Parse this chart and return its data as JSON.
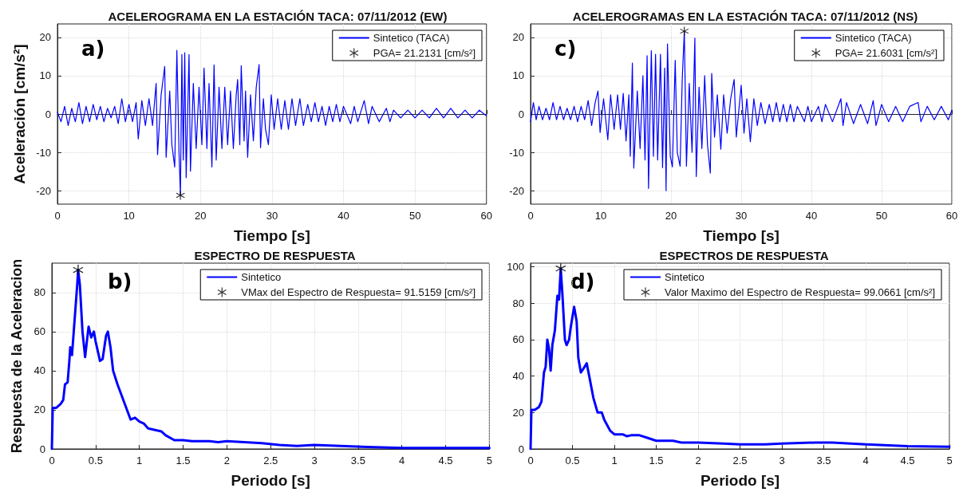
{
  "chart_data": [
    {
      "type": "line",
      "title": "ACELEROGRAMA EN LA ESTACIÓN TACA: 07/11/2012 (EW)",
      "xlabel": "Tiempo [s]",
      "ylabel": "Aceleración [cm/s²]",
      "annotations": [
        "a)"
      ],
      "xlim": [
        0,
        60
      ],
      "xticks": [
        0,
        10,
        20,
        30,
        40,
        50,
        60
      ],
      "ylim": [
        -23.5,
        23.5
      ],
      "yticks": [
        -20,
        -10,
        0,
        10,
        20
      ],
      "grid": true,
      "legend": "top right",
      "series": [
        {
          "name": "Sintetico (TACA)",
          "color": "#0000ff",
          "marker": "none",
          "x": [
            0,
            0.5,
            1,
            1.5,
            2,
            2.5,
            3,
            3.5,
            4,
            4.5,
            5,
            5.5,
            6,
            6.5,
            7,
            7.5,
            8,
            8.5,
            9,
            9.5,
            10,
            10.5,
            11,
            11.3,
            11.8,
            12.3,
            12.8,
            13.3,
            13.8,
            14,
            14.5,
            15,
            15.2,
            15.7,
            16,
            16.4,
            16.7,
            17,
            17.2,
            17.4,
            17.6,
            17.8,
            18,
            18.4,
            18.6,
            19,
            19.4,
            19.8,
            20.2,
            20.5,
            20.9,
            21.2,
            21.6,
            21.9,
            22.2,
            22.6,
            23,
            23.4,
            23.8,
            24.2,
            24.6,
            25,
            25.2,
            25.5,
            25.7,
            26.1,
            26.3,
            26.6,
            27,
            27.4,
            27.8,
            28.2,
            28.4,
            28.8,
            29.1,
            29.5,
            29.9,
            30.3,
            30.8,
            31.3,
            31.8,
            32.3,
            32.8,
            33.3,
            33.9,
            34.4,
            35,
            35.5,
            36,
            36.5,
            37,
            37.5,
            38,
            38.5,
            39,
            39.5,
            40,
            41,
            41.5,
            42,
            42.9,
            43.5,
            44,
            45,
            46,
            46.5,
            47,
            48,
            49,
            50,
            51,
            52,
            53,
            54,
            55,
            56,
            57,
            58,
            59,
            60
          ],
          "values": [
            0.5,
            -2,
            2,
            -3,
            1.5,
            -2,
            3,
            -2.5,
            2,
            -2,
            2.5,
            -1.5,
            2,
            -2,
            1.5,
            -1,
            2,
            -2.5,
            4,
            -2,
            2.5,
            -2,
            3,
            -6.5,
            3.5,
            -3,
            4,
            -3,
            8,
            -10.6,
            5,
            12.4,
            -11.3,
            6,
            -8,
            -13.8,
            16.6,
            -10,
            -21.2,
            15.5,
            -12,
            16,
            -16.6,
            15.5,
            -14.9,
            8,
            -9,
            7,
            -8,
            12,
            -9,
            8,
            -13.8,
            12.8,
            -12,
            7,
            -9,
            7,
            -8,
            6,
            -9,
            5,
            9,
            -8,
            12.6,
            -7,
            6,
            -11.3,
            5,
            -7,
            7,
            12.9,
            -8.8,
            4,
            -4,
            -8,
            5,
            -4,
            4,
            -4,
            3.5,
            -4,
            4,
            -3,
            4,
            -3,
            2.5,
            -2,
            3,
            -2,
            2,
            -3,
            2,
            -2,
            2.5,
            -2,
            2,
            -2.5,
            2,
            -2,
            3.5,
            -2.5,
            2,
            -2,
            1.5,
            -2,
            1,
            -1,
            1,
            -1,
            1,
            -1,
            1.5,
            -1,
            1.5,
            -1,
            1,
            -1,
            1,
            -0.5
          ]
        },
        {
          "name": "PGA= 21.2131 [cm/s²]",
          "type": "scatter",
          "color": "#000000",
          "marker": "star",
          "x": [
            17.2
          ],
          "values": [
            -21.2131
          ]
        }
      ]
    },
    {
      "type": "line",
      "title": "ACELEROGRAMAS EN LA ESTACIÓN TACA: 07/11/2012 (NS)",
      "xlabel": "Tiempo [s]",
      "annotations": [
        "c)"
      ],
      "xlim": [
        0,
        60
      ],
      "xticks": [
        0,
        10,
        20,
        30,
        40,
        50,
        60
      ],
      "ylim": [
        -23.5,
        23.5
      ],
      "yticks": [
        -20,
        -10,
        0,
        10,
        20
      ],
      "grid": true,
      "legend": "top right",
      "series": [
        {
          "name": "Sintetico (TACA)",
          "color": "#0000ff",
          "marker": "none",
          "x": [
            0,
            0.4,
            0.8,
            1.2,
            1.7,
            2.2,
            2.7,
            3.2,
            3.7,
            4.2,
            4.7,
            5.2,
            5.7,
            6.2,
            6.7,
            7.2,
            7.7,
            8.2,
            8.7,
            9.2,
            9.6,
            9.9,
            10.4,
            11,
            11.4,
            11.9,
            12.4,
            12.8,
            13.2,
            13.6,
            14,
            14.2,
            14.5,
            14.7,
            15.2,
            15.6,
            16,
            16.3,
            16.6,
            16.8,
            17.2,
            17.5,
            17.8,
            18.1,
            18.5,
            18.8,
            19.1,
            19.3,
            19.5,
            19.9,
            20.2,
            20.6,
            20.9,
            21.3,
            21.6,
            21.9,
            22.2,
            22.6,
            23,
            23.4,
            23.6,
            24,
            24.4,
            24.8,
            25.2,
            25.6,
            25.8,
            26.2,
            26.6,
            27.1,
            27.5,
            28,
            28.5,
            29,
            29.3,
            30,
            30.4,
            30.8,
            31.3,
            31.8,
            32.3,
            32.8,
            33.4,
            34,
            34.5,
            35,
            35.5,
            36,
            36.5,
            37,
            37.5,
            38,
            39,
            39.5,
            40,
            41,
            41.5,
            42,
            43,
            44.2,
            44.5,
            45,
            46,
            47,
            48,
            48.8,
            49.2,
            50,
            51,
            52,
            53,
            54,
            55.2,
            55.6,
            56.5,
            57.5,
            58.5,
            59.5,
            60
          ],
          "values": [
            -2,
            3,
            -1.5,
            2,
            -1.5,
            1.5,
            -1.5,
            3,
            -1.5,
            2,
            -1.5,
            1.5,
            -1.5,
            2,
            -2,
            2,
            -1.5,
            3.5,
            -3,
            3,
            6,
            -4.8,
            4,
            -6.7,
            5,
            -4,
            5,
            -4,
            5.4,
            -7,
            5,
            -11,
            13.3,
            -14.1,
            6,
            -9,
            10,
            -12,
            15.2,
            -19.4,
            16.5,
            -11,
            15.6,
            -12,
            15.6,
            -14,
            12,
            -20,
            18.3,
            -11,
            -13.8,
            14,
            -10,
            -13.6,
            9,
            21.6031,
            -13.6,
            8,
            -10,
            19.8,
            -16.3,
            7,
            -9,
            10,
            -8,
            -15.4,
            10.6,
            -6,
            5,
            -9.2,
            5,
            -5,
            4,
            9,
            -6,
            7.5,
            -5,
            4,
            -7.2,
            4,
            -3,
            3,
            -2.5,
            2.5,
            -2,
            3,
            -2,
            2.5,
            -2,
            2.5,
            -2,
            2,
            -2,
            2,
            -2,
            2,
            -2,
            2.5,
            -2,
            4,
            -3,
            3,
            -2.5,
            2.5,
            -2.5,
            3.5,
            -3,
            2.5,
            -2,
            2,
            -2,
            2,
            3,
            -2,
            2,
            -1.5,
            2,
            -1.5,
            1
          ]
        },
        {
          "name": "PGA= 21.6031 [cm/s²]",
          "type": "scatter",
          "color": "#000000",
          "marker": "star",
          "x": [
            21.9
          ],
          "values": [
            21.6031
          ]
        }
      ]
    },
    {
      "type": "line",
      "title": "ESPECTRO DE RESPUESTA",
      "xlabel": "Periodo [s]",
      "ylabel": "Respuesta de la Aceleracion",
      "annotations": [
        "b)"
      ],
      "xlim": [
        0,
        5
      ],
      "xticks": [
        0,
        0.5,
        1,
        1.5,
        2,
        2.5,
        3,
        3.5,
        4,
        4.5,
        5
      ],
      "ylim": [
        0,
        95
      ],
      "yticks": [
        0,
        20,
        40,
        60,
        80
      ],
      "grid": true,
      "legend": "top right",
      "series": [
        {
          "name": "Sintetico",
          "color": "#0000ff",
          "marker": "none",
          "x": [
            0,
            0.01,
            0.05,
            0.1,
            0.13,
            0.15,
            0.18,
            0.2,
            0.21,
            0.23,
            0.25,
            0.27,
            0.29,
            0.3,
            0.32,
            0.35,
            0.38,
            0.4,
            0.42,
            0.45,
            0.48,
            0.5,
            0.55,
            0.58,
            0.62,
            0.64,
            0.67,
            0.7,
            0.75,
            0.8,
            0.85,
            0.9,
            0.95,
            1,
            1.05,
            1.1,
            1.2,
            1.25,
            1.3,
            1.4,
            1.5,
            1.6,
            1.8,
            1.9,
            2,
            2.2,
            2.4,
            2.6,
            2.8,
            3,
            3.3,
            3.6,
            4,
            4.5,
            5
          ],
          "values": [
            0,
            21,
            21,
            23,
            25,
            33,
            34,
            45,
            52,
            48,
            60,
            72,
            84,
            91.5,
            84,
            60,
            47,
            55,
            62.5,
            57,
            60,
            55,
            45,
            46,
            58,
            60,
            52,
            40,
            33,
            27,
            21,
            15,
            16,
            14,
            13,
            10.5,
            9.5,
            9,
            7,
            4.5,
            4.5,
            4,
            4,
            3.5,
            4,
            3.5,
            3,
            2,
            1.5,
            2,
            1.5,
            1,
            0.5,
            0.5,
            0.5
          ]
        },
        {
          "name": "VMax del Espectro de Respuesta= 91.5159 [cm/s²]",
          "type": "scatter",
          "color": "#000000",
          "marker": "star",
          "x": [
            0.3
          ],
          "values": [
            91.5159
          ]
        }
      ]
    },
    {
      "type": "line",
      "title": "ESPECTROS DE RESPUESTA",
      "xlabel": "Periodo [s]",
      "annotations": [
        "d)"
      ],
      "xlim": [
        0,
        5
      ],
      "xticks": [
        0,
        0.5,
        1,
        1.5,
        2,
        2.5,
        3,
        3.5,
        4,
        4.5,
        5
      ],
      "ylim": [
        0,
        102
      ],
      "yticks": [
        0,
        20,
        40,
        60,
        80,
        100
      ],
      "grid": true,
      "legend": "top right",
      "series": [
        {
          "name": "Sintetico",
          "color": "#0000ff",
          "marker": "none",
          "x": [
            0,
            0.01,
            0.05,
            0.1,
            0.13,
            0.16,
            0.18,
            0.2,
            0.22,
            0.24,
            0.26,
            0.29,
            0.32,
            0.34,
            0.36,
            0.38,
            0.41,
            0.43,
            0.46,
            0.48,
            0.52,
            0.55,
            0.57,
            0.6,
            0.63,
            0.67,
            0.7,
            0.75,
            0.8,
            0.85,
            0.88,
            0.95,
            1,
            1.1,
            1.15,
            1.2,
            1.3,
            1.4,
            1.5,
            1.7,
            1.8,
            2,
            2.3,
            2.5,
            2.8,
            3,
            3.4,
            3.6,
            4,
            4.5,
            5
          ],
          "values": [
            0,
            21.5,
            21.5,
            23,
            26,
            42,
            45,
            60,
            55,
            43,
            57,
            65,
            84,
            82,
            99,
            85,
            60,
            57,
            60,
            67,
            78,
            70,
            50,
            42,
            44,
            47,
            40,
            28,
            20,
            20,
            16,
            10,
            8,
            8,
            7,
            7.5,
            7.5,
            6,
            4.5,
            4.5,
            3.5,
            3.5,
            3,
            2.5,
            2.5,
            3,
            3.5,
            3.5,
            2.5,
            1.5,
            1.2
          ]
        },
        {
          "name": "Valor Maximo del Espectro de Respuesta= 99.0661 [cm/s²]",
          "type": "scatter",
          "color": "#000000",
          "marker": "star",
          "x": [
            0.36
          ],
          "values": [
            99.0661
          ]
        }
      ]
    }
  ]
}
